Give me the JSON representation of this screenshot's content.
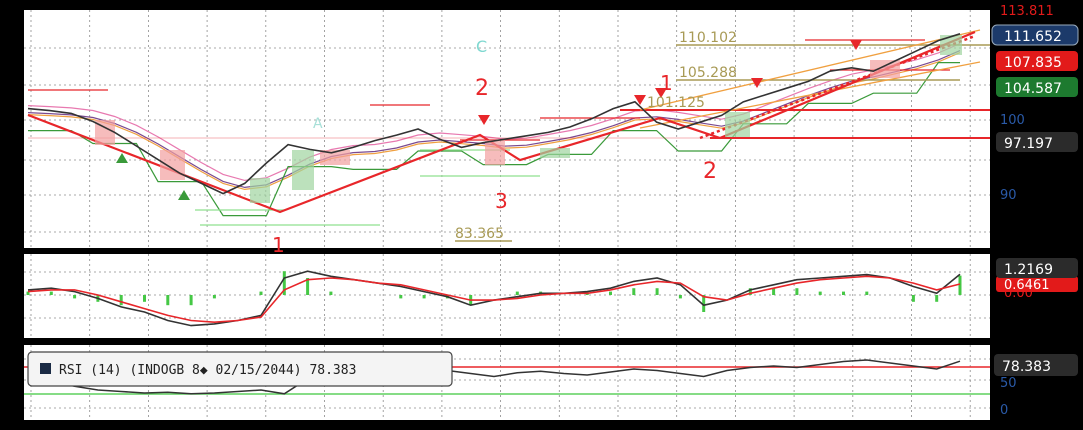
{
  "colors": {
    "background": "#000000",
    "plot_bg": "#ffffff",
    "grid": "#8c8c8c",
    "red": "#e8262a",
    "green": "#3a9a3a",
    "light_green": "#8fe08f",
    "gold": "#a89a55",
    "orange": "#f0a040",
    "pink": "#e879b0",
    "purple": "#7a4a90",
    "dark_line": "#333333",
    "axis_blue": "#2a5aa8",
    "label_blue": "#1c3a6a",
    "label_red": "#e21a1a",
    "label_green": "#1d7a2f",
    "label_dark": "#2b2b2b"
  },
  "price_panel": {
    "axis_ticks": [
      "100",
      "90"
    ],
    "top_cut_label": "113.811",
    "price_badges": [
      {
        "text": "111.652",
        "style": "blue"
      },
      {
        "text": "107.835",
        "style": "red"
      },
      {
        "text": "104.587",
        "style": "green"
      },
      {
        "text": "97.197",
        "style": "dark"
      }
    ],
    "level_labels": [
      "110.102",
      "105.288",
      "101.125",
      "83.365"
    ],
    "wave_labels": [
      "1",
      "2",
      "3",
      "1",
      "2"
    ],
    "marker_labels": [
      "C",
      "A"
    ]
  },
  "macd_panel": {
    "badges": [
      {
        "text": "1.2169",
        "style": "dark"
      },
      {
        "text": "0.6461",
        "style": "red"
      }
    ],
    "axis_cut_label": "0.00"
  },
  "rsi_panel": {
    "legend_text": "RSI (14) (INDOGB 8\u0000 02/15/2044) 78.383",
    "badge": "78.383",
    "axis_ticks": [
      "50",
      "0"
    ]
  },
  "chart_data": [
    {
      "type": "line",
      "panel": "price",
      "ylim": [
        80,
        115
      ],
      "series": [
        {
          "values": [
            100.5,
            100.2,
            99.8,
            98.6,
            97.0,
            95.0,
            93.0,
            91.0,
            89.5,
            88.0,
            89.5,
            92.5,
            95.2,
            94.5,
            94.0,
            94.8,
            95.8,
            96.6,
            97.5,
            96.0,
            94.8,
            95.5,
            96.0,
            96.5,
            97.0,
            97.8,
            99.0,
            100.5,
            101.5,
            98.5,
            97.5,
            98.5,
            99.5,
            101.5,
            102.5,
            103.5,
            104.5,
            106.0,
            106.5,
            106.0,
            107.5,
            109.0,
            110.5,
            111.5
          ]
        }
      ]
    },
    {
      "type": "line",
      "panel": "macd",
      "series": [
        {
          "name": "",
          "values": [
            0.3,
            0.4,
            0.2,
            -0.2,
            -0.7,
            -1.0,
            -1.5,
            -1.8,
            -1.7,
            -1.5,
            -1.2,
            1.0,
            1.4,
            1.1,
            0.9,
            0.7,
            0.5,
            0.2,
            -0.1,
            -0.6,
            -0.3,
            -0.1,
            0.1,
            0.1,
            0.2,
            0.4,
            0.8,
            1.0,
            0.6,
            -0.6,
            -0.3,
            0.3,
            0.6,
            0.9,
            1.0,
            1.1,
            1.2,
            1.0,
            0.5,
            0.1,
            1.2169
          ]
        },
        {
          "name": "",
          "values": [
            0.2,
            0.3,
            0.3,
            0.0,
            -0.4,
            -0.8,
            -1.2,
            -1.5,
            -1.6,
            -1.5,
            -1.3,
            0.3,
            0.9,
            1.0,
            0.9,
            0.7,
            0.6,
            0.3,
            0.0,
            -0.3,
            -0.3,
            -0.2,
            0.0,
            0.1,
            0.1,
            0.3,
            0.6,
            0.8,
            0.7,
            -0.1,
            -0.3,
            0.1,
            0.4,
            0.7,
            0.9,
            1.0,
            1.1,
            1.0,
            0.7,
            0.3,
            0.6461
          ]
        }
      ]
    },
    {
      "type": "line",
      "panel": "rsi",
      "ylim": [
        0,
        100
      ],
      "series": [
        {
          "name": "RSI (14)",
          "values": [
            55,
            52,
            45,
            40,
            38,
            36,
            37,
            35,
            36,
            38,
            40,
            35,
            55,
            70,
            66,
            62,
            60,
            64,
            66,
            62,
            58,
            63,
            65,
            62,
            60,
            64,
            68,
            66,
            62,
            58,
            66,
            70,
            72,
            70,
            74,
            78,
            80,
            76,
            72,
            68,
            78.383
          ]
        }
      ]
    }
  ]
}
